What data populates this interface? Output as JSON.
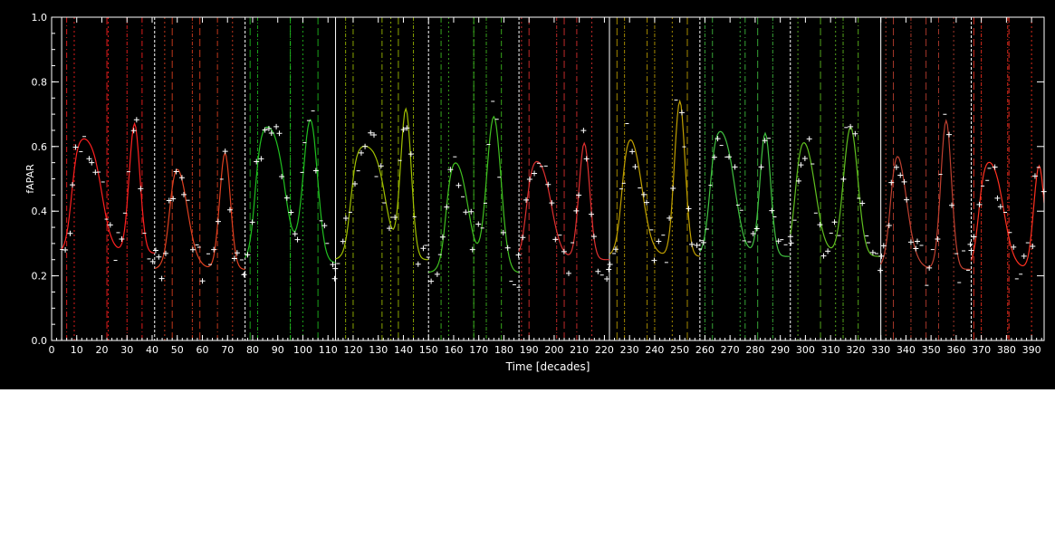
{
  "chart_data": {
    "type": "line",
    "title": "",
    "xlabel": "Time [decades]",
    "ylabel": "fAPAR",
    "xlim": [
      0,
      395
    ],
    "ylim": [
      0.0,
      1.0
    ],
    "xticks": [
      0,
      10,
      20,
      30,
      40,
      50,
      60,
      70,
      80,
      90,
      100,
      110,
      120,
      130,
      140,
      150,
      160,
      170,
      180,
      190,
      200,
      210,
      220,
      230,
      240,
      250,
      260,
      270,
      280,
      290,
      300,
      310,
      320,
      330,
      340,
      350,
      360,
      370,
      380,
      390
    ],
    "yticks": [
      "0.0",
      "0.2",
      "0.4",
      "0.6",
      "0.8",
      "1.0"
    ],
    "grid": false,
    "background": "#000000",
    "season_boundaries": [
      4,
      41,
      77,
      113,
      150,
      186,
      222,
      258,
      294,
      330,
      366
    ],
    "seasons": [
      {
        "start": 4,
        "end": 41,
        "color": "#ff2020",
        "base": 0.27,
        "peak": 0.64,
        "rise": 8,
        "fall": 20,
        "secondary": {
          "center": 33,
          "amp": 0.4,
          "width": 3
        }
      },
      {
        "start": 41,
        "end": 77,
        "color": "#e04020",
        "base": 0.22,
        "peak": 0.6,
        "rise": 47,
        "fall": 54,
        "secondary": {
          "center": 69,
          "amp": 0.36,
          "width": 3
        }
      },
      {
        "start": 77,
        "end": 113,
        "color": "#20c020",
        "base": 0.24,
        "peak": 0.68,
        "rise": 81,
        "fall": 93,
        "secondary": {
          "center": 103,
          "amp": 0.44,
          "width": 4
        }
      },
      {
        "start": 113,
        "end": 150,
        "color": "#a0c000",
        "base": 0.25,
        "peak": 0.61,
        "rise": 119,
        "fall": 133,
        "secondary": {
          "center": 141,
          "amp": 0.46,
          "width": 3
        }
      },
      {
        "start": 150,
        "end": 186,
        "color": "#40c020",
        "base": 0.21,
        "peak": 0.59,
        "rise": 157,
        "fall": 166,
        "secondary": {
          "center": 176,
          "amp": 0.48,
          "width": 4
        }
      },
      {
        "start": 186,
        "end": 222,
        "color": "#e03030",
        "base": 0.25,
        "peak": 0.58,
        "rise": 189,
        "fall": 199,
        "secondary": {
          "center": 212,
          "amp": 0.36,
          "width": 3
        }
      },
      {
        "start": 222,
        "end": 258,
        "color": "#c0a000",
        "base": 0.26,
        "peak": 0.68,
        "rise": 227,
        "fall": 235,
        "secondary": {
          "center": 250,
          "amp": 0.48,
          "width": 3
        }
      },
      {
        "start": 258,
        "end": 294,
        "color": "#40c040",
        "base": 0.26,
        "peak": 0.68,
        "rise": 262,
        "fall": 272,
        "secondary": {
          "center": 284,
          "amp": 0.38,
          "width": 3
        }
      },
      {
        "start": 294,
        "end": 330,
        "color": "#60c020",
        "base": 0.26,
        "peak": 0.67,
        "rise": 296,
        "fall": 304,
        "secondary": {
          "center": 318,
          "amp": 0.4,
          "width": 4
        }
      },
      {
        "start": 330,
        "end": 366,
        "color": "#c04030",
        "base": 0.22,
        "peak": 0.68,
        "rise": 334,
        "fall": 340,
        "secondary": {
          "center": 356,
          "amp": 0.46,
          "width": 3
        }
      },
      {
        "start": 366,
        "end": 395,
        "color": "#ff3020",
        "base": 0.22,
        "peak": 0.58,
        "rise": 369,
        "fall": 379,
        "secondary": {
          "center": 393,
          "amp": 0.32,
          "width": 3
        }
      }
    ]
  }
}
